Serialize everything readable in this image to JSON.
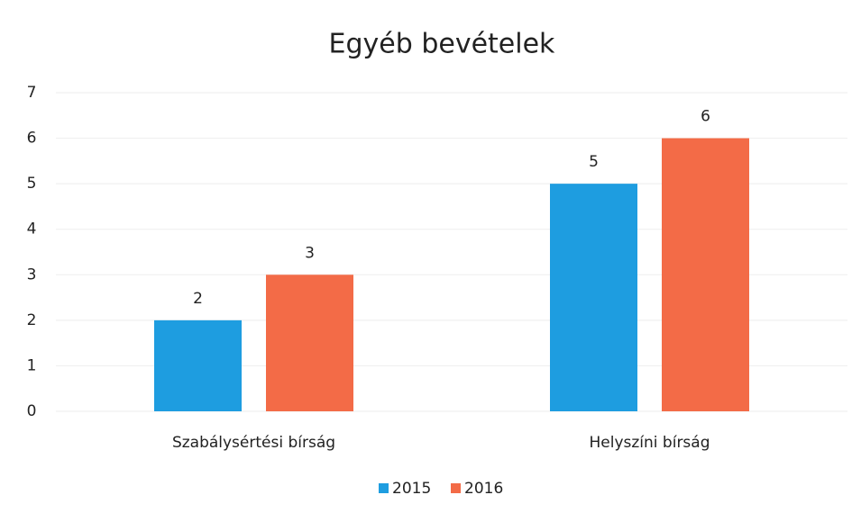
{
  "chart_data": {
    "type": "bar",
    "title": "Egyéb bevételek",
    "categories": [
      "Szabálysértési bírság",
      "Helyszíni bírság"
    ],
    "series": [
      {
        "name": "2015",
        "color": "#1e9de0",
        "values": [
          2,
          5
        ]
      },
      {
        "name": "2016",
        "color": "#f36b47",
        "values": [
          3,
          6
        ]
      }
    ],
    "ylim": [
      0,
      7
    ],
    "yticks": [
      0,
      1,
      2,
      3,
      4,
      5,
      6,
      7
    ],
    "grid": true,
    "legend": "bottom"
  }
}
